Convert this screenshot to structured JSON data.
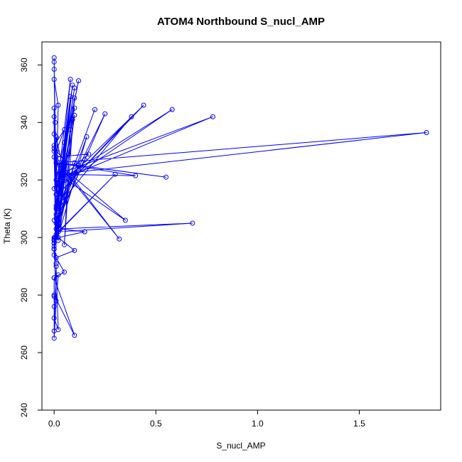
{
  "chart_data": {
    "type": "line",
    "title": "ATOM4 Northbound S_nucl_AMP",
    "xlabel": "S_nucl_AMP",
    "ylabel": "Theta (K)",
    "xlim": [
      -0.06,
      1.9
    ],
    "ylim": [
      240,
      368
    ],
    "x_ticks": [
      0.0,
      0.5,
      1.0,
      1.5
    ],
    "x_tick_labels": [
      "0.0",
      "0.5",
      "1.0",
      "1.5"
    ],
    "y_ticks": [
      240,
      260,
      280,
      300,
      320,
      340,
      360
    ],
    "y_tick_labels": [
      "240",
      "260",
      "280",
      "300",
      "320",
      "340",
      "360"
    ],
    "grid": false,
    "legend": "none",
    "series": [
      {
        "color": "#0000ff",
        "marker": "open-circle",
        "x": [
          0.0,
          0.0,
          0.005,
          0.0,
          0.01,
          0.0,
          0.02,
          0.005,
          0.0,
          0.01,
          0.0,
          0.0,
          0.02,
          0.0,
          0.05,
          0.0,
          0.01,
          0.0,
          0.03,
          0.0,
          0.01,
          0.01,
          0.04,
          0.02,
          0.0,
          0.06,
          0.02,
          0.05,
          0.0,
          0.07,
          0.02,
          0.03,
          0.0,
          0.1,
          0.0,
          0.05,
          0.02,
          0.12,
          0.01,
          0.15,
          0.01,
          0.16,
          0.03,
          0.1,
          0.02,
          0.25,
          0.02,
          0.2,
          0.03,
          0.38,
          0.02,
          0.44,
          0.03,
          0.58,
          0.03,
          0.78,
          0.02,
          1.83,
          0.02,
          0.55,
          0.01,
          0.4,
          0.02,
          0.35,
          0.03,
          0.32,
          0.01,
          0.17,
          0.02,
          0.12,
          0.01,
          0.08,
          0.02,
          0.1,
          0.01,
          0.08,
          0.02,
          0.09,
          0.01,
          0.1,
          0.02,
          0.09,
          0.01,
          0.08,
          0.05,
          0.1,
          0.01,
          0.3,
          0.02,
          0.68,
          0.03,
          0.15,
          0.02,
          0.1,
          0.01,
          0.05,
          0.0,
          0.1,
          0.0,
          0.0,
          0.0,
          0.0,
          0.02,
          0.01,
          0.0,
          0.02,
          0.0,
          0.0,
          0.01,
          0.0,
          0.0,
          0.0,
          0.0,
          0.0,
          0.0,
          0.0,
          0.01,
          0.0,
          0.02,
          0.0
        ],
        "y": [
          362.5,
          361,
          340,
          358.5,
          320,
          355,
          346,
          300,
          345,
          330,
          342,
          336,
          310,
          332,
          337.5,
          328,
          300,
          330,
          322,
          306,
          311,
          335,
          325,
          299,
          331,
          326,
          303,
          333,
          317,
          329,
          304,
          323,
          296,
          326,
          298,
          322,
          307,
          325,
          310,
          327,
          305,
          335,
          303,
          342.5,
          306,
          343,
          310,
          344.5,
          312,
          342,
          315,
          346,
          318,
          344.5,
          320,
          342,
          322,
          336.5,
          326,
          321,
          326,
          321.5,
          322,
          306,
          325,
          299.5,
          328,
          329,
          320,
          354.5,
          315,
          355,
          312,
          352,
          310,
          349,
          305,
          353,
          308,
          345,
          312,
          341,
          303,
          337.5,
          297.5,
          348.5,
          301,
          322,
          302,
          305,
          303,
          302,
          300,
          295.5,
          293,
          288,
          286,
          266,
          280,
          279.5,
          276,
          272,
          268,
          290,
          267.5,
          287,
          286,
          265,
          278,
          296,
          299,
          294,
          300,
          298,
          297,
          296,
          291,
          299,
          302,
          299.5
        ]
      }
    ]
  }
}
